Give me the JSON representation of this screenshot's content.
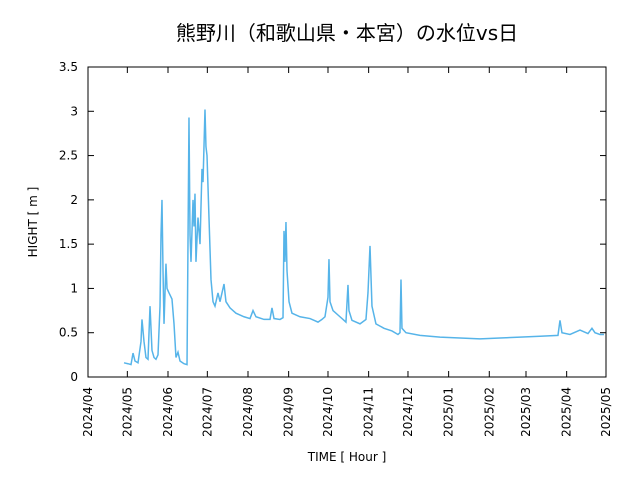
{
  "chart_data": {
    "type": "line",
    "title": "熊野川（和歌山県・本宮）の水位vs日",
    "xlabel": "TIME [ Hour ]",
    "ylabel": "HIGHT [ m ]",
    "xlim": [
      0,
      9480
    ],
    "xticks": [
      {
        "value": 0,
        "label": "2024/04"
      },
      {
        "value": 720,
        "label": "2024/05"
      },
      {
        "value": 1464,
        "label": "2024/06"
      },
      {
        "value": 2184,
        "label": "2024/07"
      },
      {
        "value": 2928,
        "label": "2024/08"
      },
      {
        "value": 3672,
        "label": "2024/09"
      },
      {
        "value": 4392,
        "label": "2024/10"
      },
      {
        "value": 5136,
        "label": "2024/11"
      },
      {
        "value": 5856,
        "label": "2024/12"
      },
      {
        "value": 6600,
        "label": "2025/01"
      },
      {
        "value": 7344,
        "label": "2025/02"
      },
      {
        "value": 8016,
        "label": "2025/03"
      },
      {
        "value": 8760,
        "label": "2025/04"
      },
      {
        "value": 9480,
        "label": "2025/05"
      }
    ],
    "ylim": [
      0,
      3.5
    ],
    "yticks": [
      0,
      0.5,
      1,
      1.5,
      2,
      2.5,
      3,
      3.5
    ],
    "grid": false,
    "color": "#56b4e9",
    "x": [
      659,
      732,
      787,
      824,
      860,
      915,
      970,
      988,
      1025,
      1061,
      1098,
      1135,
      1171,
      1208,
      1244,
      1281,
      1318,
      1336,
      1354,
      1373,
      1391,
      1427,
      1446,
      1482,
      1537,
      1574,
      1610,
      1647,
      1684,
      1757,
      1812,
      1830,
      1848,
      1867,
      1885,
      1922,
      1940,
      1958,
      1976,
      2013,
      2050,
      2086,
      2105,
      2141,
      2159,
      2178,
      2214,
      2251,
      2288,
      2324,
      2379,
      2416,
      2489,
      2525,
      2599,
      2708,
      2855,
      2965,
      3020,
      3074,
      3221,
      3331,
      3367,
      3404,
      3514,
      3569,
      3587,
      3605,
      3623,
      3642,
      3679,
      3733,
      3880,
      4063,
      4136,
      4209,
      4282,
      4337,
      4392,
      4410,
      4429,
      4484,
      4575,
      4667,
      4721,
      4758,
      4776,
      4831,
      4978,
      5087,
      5124,
      5161,
      5197,
      5270,
      5417,
      5563,
      5673,
      5710,
      5728,
      5746,
      5819,
      6076,
      6442,
      6808,
      7174,
      7540,
      7906,
      8272,
      8601,
      8638,
      8674,
      8821,
      9004,
      9150,
      9223,
      9278,
      9370,
      9443
    ],
    "values": [
      0.16,
      0.15,
      0.14,
      0.27,
      0.18,
      0.16,
      0.4,
      0.65,
      0.4,
      0.22,
      0.2,
      0.8,
      0.3,
      0.22,
      0.2,
      0.25,
      0.8,
      1.6,
      2.0,
      1.2,
      0.6,
      1.28,
      1.0,
      0.95,
      0.88,
      0.6,
      0.22,
      0.28,
      0.18,
      0.15,
      0.14,
      1.5,
      2.93,
      1.6,
      1.3,
      2.0,
      1.7,
      2.07,
      1.3,
      1.8,
      1.5,
      2.35,
      2.2,
      3.02,
      2.6,
      2.5,
      1.8,
      1.1,
      0.85,
      0.8,
      0.95,
      0.85,
      1.05,
      0.85,
      0.78,
      0.72,
      0.68,
      0.66,
      0.75,
      0.68,
      0.65,
      0.65,
      0.78,
      0.66,
      0.65,
      0.67,
      1.65,
      1.3,
      1.75,
      1.2,
      0.85,
      0.72,
      0.68,
      0.66,
      0.64,
      0.62,
      0.65,
      0.68,
      0.9,
      1.33,
      0.85,
      0.75,
      0.7,
      0.65,
      0.62,
      1.04,
      0.75,
      0.64,
      0.6,
      0.65,
      0.95,
      1.48,
      0.8,
      0.6,
      0.55,
      0.52,
      0.48,
      0.5,
      1.1,
      0.55,
      0.5,
      0.47,
      0.45,
      0.44,
      0.43,
      0.44,
      0.45,
      0.46,
      0.47,
      0.64,
      0.5,
      0.48,
      0.53,
      0.49,
      0.55,
      0.5,
      0.48,
      0.48
    ]
  }
}
